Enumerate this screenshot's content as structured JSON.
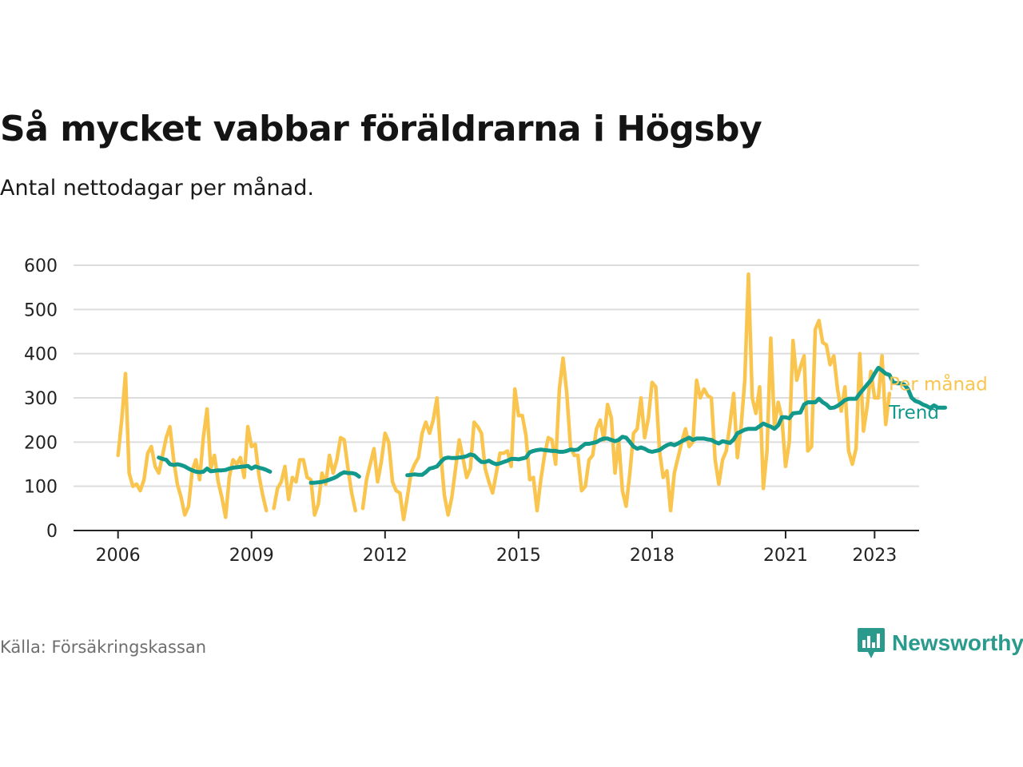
{
  "header": {
    "title": "Så mycket vabbar föräldrarna i Högsby",
    "subtitle": "Antal nettodagar per månad."
  },
  "footer": {
    "source": "Källa: Försäkringskassan",
    "brand": "Newsworthy"
  },
  "colors": {
    "monthly": "#f9c54e",
    "trend": "#12998c",
    "grid": "#dddddd",
    "axis": "#222222",
    "brand": "#2a9a8c"
  },
  "icons": {
    "brand_logo": "bar-chart-speech-bubble-icon"
  },
  "chart_data": {
    "type": "line",
    "x_type": "time",
    "ylim": [
      0,
      600
    ],
    "yticks": [
      0,
      100,
      200,
      300,
      400,
      500,
      600
    ],
    "ytick_labels": [
      "0",
      "100",
      "200",
      "300",
      "400",
      "500",
      "600"
    ],
    "xlim": [
      "2005-01",
      "2024-01"
    ],
    "xticks": [
      "2006-01",
      "2009-01",
      "2012-01",
      "2015-01",
      "2018-01",
      "2021-01",
      "2023-01"
    ],
    "xtick_labels": [
      "2006",
      "2009",
      "2012",
      "2015",
      "2018",
      "2021",
      "2023"
    ],
    "grid": "horizontal",
    "legend": "direct labels at line ends, right",
    "series": [
      {
        "name": "Per månad",
        "color": "#f9c54e",
        "start": "2006-01",
        "values": [
          170,
          250,
          355,
          130,
          100,
          105,
          90,
          115,
          175,
          190,
          145,
          130,
          170,
          210,
          235,
          160,
          105,
          75,
          35,
          55,
          135,
          160,
          115,
          210,
          275,
          140,
          170,
          110,
          75,
          30,
          120,
          160,
          150,
          165,
          120,
          235,
          190,
          195,
          125,
          80,
          45,
          null,
          50,
          95,
          110,
          145,
          70,
          120,
          110,
          160,
          160,
          120,
          115,
          35,
          60,
          130,
          105,
          170,
          130,
          160,
          210,
          205,
          140,
          85,
          45,
          null,
          50,
          115,
          150,
          185,
          110,
          155,
          220,
          200,
          110,
          90,
          85,
          25,
          75,
          130,
          150,
          165,
          220,
          245,
          220,
          250,
          300,
          175,
          80,
          35,
          75,
          140,
          205,
          165,
          120,
          140,
          245,
          235,
          220,
          140,
          110,
          85,
          130,
          175,
          175,
          180,
          145,
          320,
          260,
          260,
          215,
          115,
          120,
          45,
          115,
          170,
          210,
          205,
          150,
          320,
          390,
          310,
          190,
          170,
          170,
          90,
          100,
          160,
          170,
          230,
          250,
          205,
          285,
          255,
          130,
          205,
          90,
          55,
          130,
          220,
          230,
          300,
          210,
          255,
          335,
          325,
          180,
          120,
          135,
          45,
          130,
          165,
          200,
          230,
          190,
          200,
          340,
          300,
          320,
          305,
          300,
          160,
          105,
          160,
          180,
          240,
          310,
          165,
          235,
          340,
          580,
          300,
          265,
          325,
          95,
          180,
          435,
          235,
          290,
          255,
          145,
          200,
          430,
          340,
          370,
          395,
          180,
          190,
          455,
          475,
          425,
          420,
          375,
          395,
          320,
          270,
          325,
          180,
          150,
          185,
          400,
          225,
          280,
          360,
          300,
          300,
          395,
          240,
          310
        ]
      },
      {
        "name": "Trend",
        "color": "#12998c",
        "start": "2006-01",
        "values": [
          null,
          null,
          null,
          null,
          null,
          null,
          null,
          null,
          null,
          null,
          null,
          165,
          162,
          160,
          150,
          148,
          150,
          148,
          145,
          140,
          136,
          133,
          132,
          133,
          140,
          134,
          135,
          136,
          136,
          137,
          140,
          142,
          143,
          144,
          145,
          146,
          140,
          145,
          142,
          140,
          137,
          133,
          null,
          null,
          null,
          null,
          null,
          null,
          null,
          null,
          null,
          null,
          108,
          108,
          109,
          110,
          112,
          115,
          118,
          122,
          128,
          132,
          130,
          130,
          128,
          122,
          null,
          null,
          null,
          null,
          null,
          null,
          null,
          null,
          null,
          null,
          null,
          null,
          125,
          126,
          127,
          126,
          126,
          132,
          140,
          142,
          145,
          155,
          163,
          165,
          164,
          164,
          165,
          166,
          168,
          172,
          170,
          162,
          155,
          155,
          158,
          153,
          150,
          152,
          155,
          158,
          162,
          162,
          161,
          163,
          165,
          177,
          180,
          182,
          183,
          182,
          181,
          180,
          180,
          178,
          178,
          180,
          183,
          182,
          183,
          190,
          196,
          196,
          198,
          200,
          205,
          208,
          208,
          205,
          202,
          205,
          212,
          210,
          200,
          190,
          185,
          188,
          185,
          180,
          178,
          180,
          182,
          188,
          193,
          196,
          193,
          197,
          202,
          206,
          210,
          205,
          208,
          208,
          208,
          206,
          205,
          200,
          197,
          202,
          200,
          198,
          206,
          220,
          224,
          228,
          230,
          230,
          230,
          236,
          242,
          238,
          235,
          230,
          238,
          256,
          256,
          254,
          265,
          266,
          267,
          285,
          290,
          290,
          290,
          298,
          290,
          285,
          277,
          278,
          282,
          288,
          295,
          298,
          298,
          298,
          310,
          320,
          330,
          340,
          355,
          368,
          362,
          355,
          352,
          335,
          333,
          333,
          330,
          320,
          300,
          293,
          290,
          285,
          282,
          277,
          283,
          278,
          278,
          278
        ]
      }
    ]
  }
}
